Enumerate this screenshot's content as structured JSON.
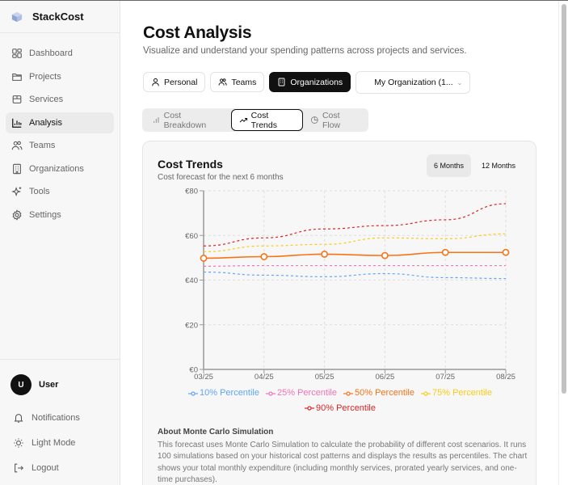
{
  "app": {
    "name": "StackCost"
  },
  "sidebar": {
    "items": [
      {
        "label": "Dashboard",
        "icon": "dashboard-icon",
        "active": false
      },
      {
        "label": "Projects",
        "icon": "folder-icon",
        "active": false
      },
      {
        "label": "Services",
        "icon": "package-icon",
        "active": false
      },
      {
        "label": "Analysis",
        "icon": "bar-chart-icon",
        "active": true
      },
      {
        "label": "Teams",
        "icon": "users-icon",
        "active": false
      },
      {
        "label": "Organizations",
        "icon": "building-icon",
        "active": false
      },
      {
        "label": "Tools",
        "icon": "sparkles-icon",
        "active": false
      },
      {
        "label": "Settings",
        "icon": "gear-icon",
        "active": false
      }
    ],
    "user": {
      "initial": "U",
      "name": "User"
    },
    "bottom": [
      {
        "label": "Notifications",
        "icon": "bell-icon"
      },
      {
        "label": "Light Mode",
        "icon": "sun-icon"
      },
      {
        "label": "Logout",
        "icon": "logout-icon"
      }
    ]
  },
  "header": {
    "title": "Cost Analysis",
    "subtitle": "Visualize and understand your spending patterns across projects and services."
  },
  "scope": {
    "buttons": [
      {
        "label": "Personal",
        "icon": "user-icon",
        "active": false
      },
      {
        "label": "Teams",
        "icon": "users-icon",
        "active": false
      },
      {
        "label": "Organizations",
        "icon": "building-icon",
        "active": true
      }
    ],
    "org_select": {
      "value": "My Organization (1...",
      "icon": "chevron-down-icon"
    }
  },
  "tabs": [
    {
      "label": "Cost Breakdown",
      "icon": "bar-chart-icon",
      "active": false
    },
    {
      "label": "Cost Trends",
      "icon": "trending-up-icon",
      "active": true
    },
    {
      "label": "Cost Flow",
      "icon": "pie-chart-icon",
      "active": false
    }
  ],
  "card": {
    "title": "Cost Trends",
    "subtitle": "Cost forecast for the next 6 months",
    "range": [
      {
        "label": "6 Months",
        "active": true
      },
      {
        "label": "12 Months",
        "active": false
      }
    ],
    "about_title": "About Monte Carlo Simulation",
    "about_body": "This forecast uses Monte Carlo Simulation to calculate the probability of different cost scenarios. It runs 100 simulations based on your historical cost patterns and displays the results as percentiles. The chart shows your total monthly expenditure (including monthly services, prorated yearly services, and one-time purchases)."
  },
  "chart_data": {
    "type": "line",
    "title": "Cost Trends",
    "subtitle": "Cost forecast for the next 6 months",
    "xlabel": "",
    "ylabel": "",
    "categories": [
      "03/25",
      "04/25",
      "05/25",
      "06/25",
      "07/25",
      "08/25"
    ],
    "y_ticks": [
      "€0",
      "€20",
      "€40",
      "€60",
      "€80"
    ],
    "ylim": [
      0,
      80
    ],
    "grid": true,
    "legend_position": "bottom",
    "series": [
      {
        "name": "10% Percentile",
        "color": "#60a5fa",
        "style": "dashed",
        "values": [
          43.6,
          42.2,
          41.5,
          42.9,
          41.1,
          40.7
        ]
      },
      {
        "name": "25% Percentile",
        "color": "#f472b6",
        "style": "dashed",
        "values": [
          46.2,
          46.5,
          46.5,
          46.5,
          46.5,
          46.5
        ]
      },
      {
        "name": "50% Percentile",
        "color": "#f97316",
        "style": "solid",
        "values": [
          49.8,
          50.5,
          51.6,
          51.0,
          52.4,
          52.4
        ]
      },
      {
        "name": "75% Percentile",
        "color": "#facc15",
        "style": "dashed",
        "values": [
          52.7,
          55.3,
          56.0,
          58.9,
          58.5,
          60.7
        ]
      },
      {
        "name": "90% Percentile",
        "color": "#dc2626",
        "style": "dashed",
        "values": [
          55.3,
          58.9,
          62.9,
          64.4,
          67.0,
          74.2
        ]
      }
    ]
  }
}
